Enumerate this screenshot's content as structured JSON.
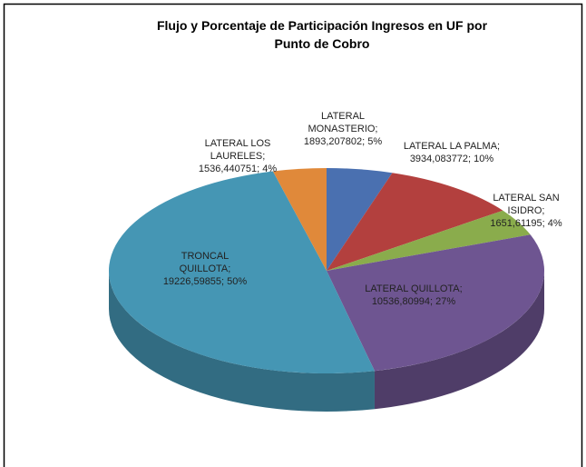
{
  "chart_data": {
    "type": "pie3d",
    "title": "Flujo y Porcentaje de Participación Ingresos en UF por Punto de Cobro",
    "labels": [
      "LATERAL MONASTERIO; 1893,207802; 5%",
      "LATERAL LA PALMA; 3934,083772; 10%",
      "LATERAL SAN ISIDRO; 1651,61195; 4%",
      "LATERAL QUILLOTA; 10536,80994; 27%",
      "TRONCAL QUILLOTA; 19226,59855; 50%",
      "LATERAL LOS LAURELES; 1536,440751; 4%"
    ],
    "values": [
      1893.207802,
      3934.083772,
      1651.61195,
      10536.80994,
      19226.59855,
      1536.440751
    ],
    "colors": [
      "#4a70b0",
      "#b3403e",
      "#8aac4c",
      "#6e5591",
      "#4596b4",
      "#e0893a"
    ]
  }
}
